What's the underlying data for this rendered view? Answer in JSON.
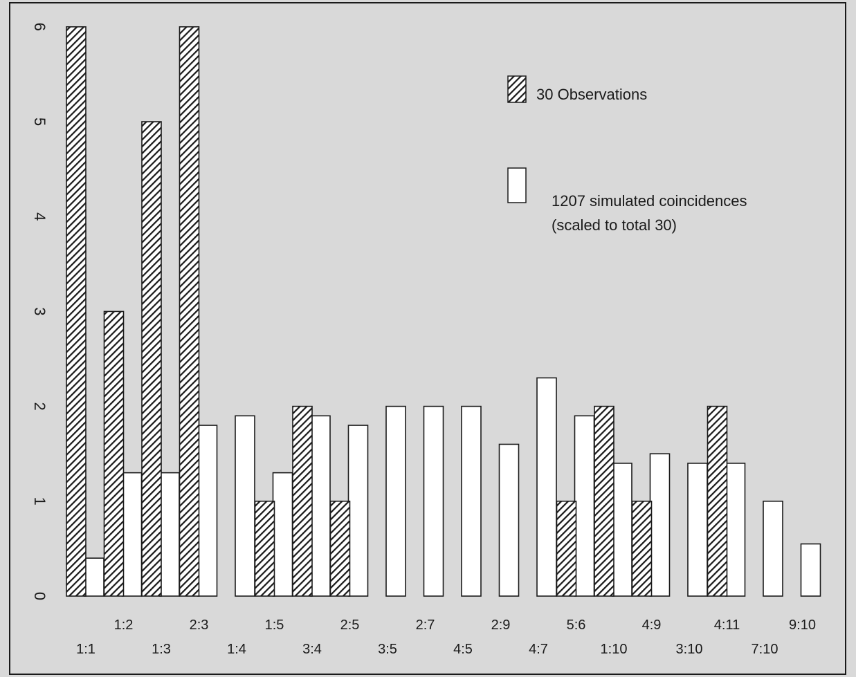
{
  "chart_data": {
    "type": "bar",
    "title": "",
    "xlabel": "",
    "ylabel": "",
    "ylim": [
      0,
      6.2
    ],
    "yticks": [
      "0",
      "1",
      "2",
      "3",
      "4",
      "5",
      "6"
    ],
    "categories": [
      "1:1",
      "1:2",
      "1:3",
      "2:3",
      "1:4",
      "1:5",
      "3:4",
      "2:5",
      "3:5",
      "2:7",
      "4:5",
      "2:9",
      "4:7",
      "5:6",
      "1:10",
      "4:9",
      "3:10",
      "4:11",
      "7:10",
      "9:10"
    ],
    "series": [
      {
        "name": "30 Observations",
        "pattern": "hatched",
        "values": [
          6,
          3,
          5,
          6,
          0,
          1,
          2,
          1,
          0,
          0,
          0,
          0,
          0,
          1,
          2,
          1,
          0,
          2,
          0,
          0
        ]
      },
      {
        "name": "1207 simulated coincidences\n(scaled to total 30)",
        "pattern": "open",
        "values": [
          0.4,
          1.3,
          1.3,
          1.8,
          1.9,
          1.3,
          1.9,
          1.8,
          2.0,
          2.0,
          2.0,
          1.6,
          2.3,
          1.9,
          1.4,
          1.5,
          1.4,
          1.4,
          1.0,
          0.55
        ]
      }
    ],
    "legend": [
      {
        "label": "30 Observations"
      },
      {
        "label": "1207 simulated coincidences",
        "sublabel": "(scaled to total 30)"
      }
    ],
    "legend_position": "upper-right",
    "grid": false
  },
  "colors": {
    "background": "#d9d9d9",
    "frame": "#1a1a1a",
    "hatch": "#1a1a1a",
    "open_fill": "#ffffff"
  }
}
